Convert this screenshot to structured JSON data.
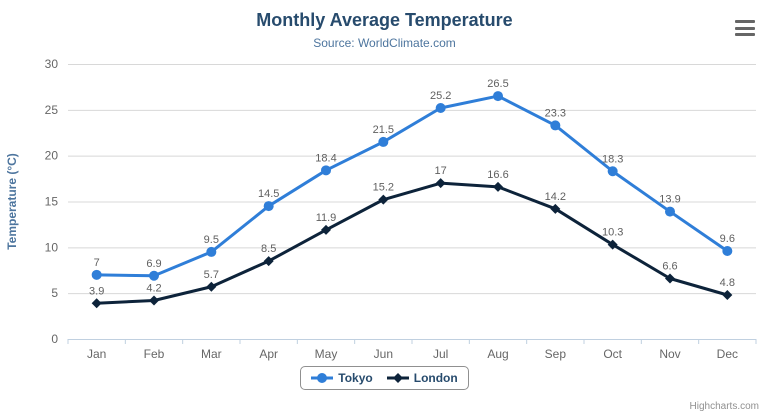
{
  "header": {
    "title": "Monthly Average Temperature",
    "subtitle": "Source: WorldClimate.com"
  },
  "chart_data": {
    "type": "line",
    "title": "Monthly Average Temperature",
    "subtitle": "Source: WorldClimate.com",
    "categories": [
      "Jan",
      "Feb",
      "Mar",
      "Apr",
      "May",
      "Jun",
      "Jul",
      "Aug",
      "Sep",
      "Oct",
      "Nov",
      "Dec"
    ],
    "series": [
      {
        "name": "Tokyo",
        "color": "#2f7ed8",
        "marker": "circle",
        "values": [
          7,
          6.9,
          9.5,
          14.5,
          18.4,
          21.5,
          25.2,
          26.5,
          23.3,
          18.3,
          13.9,
          9.6
        ]
      },
      {
        "name": "London",
        "color": "#0d233a",
        "marker": "diamond",
        "values": [
          3.9,
          4.2,
          5.7,
          8.5,
          11.9,
          15.2,
          17,
          16.6,
          14.2,
          10.3,
          6.6,
          4.8
        ]
      }
    ],
    "xlabel": "",
    "ylabel": "Temperature (°C)",
    "ylim": [
      0,
      30
    ],
    "ytick_interval": 5,
    "yticks": [
      0,
      5,
      10,
      15,
      20,
      25,
      30
    ],
    "grid": true,
    "data_labels": true,
    "legend_position": "bottom"
  },
  "credits": "Highcharts.com",
  "colors": {
    "title": "#274b6d",
    "subtitle": "#4d759e",
    "axis_label": "#666666",
    "axis_title": "#4d759e",
    "grid": "#d8d8d8",
    "axis_line": "#c0d0e0",
    "data_label": "#606060",
    "legend_text": "#274b6d",
    "credits": "#909090",
    "menu_icon": "#666666"
  }
}
